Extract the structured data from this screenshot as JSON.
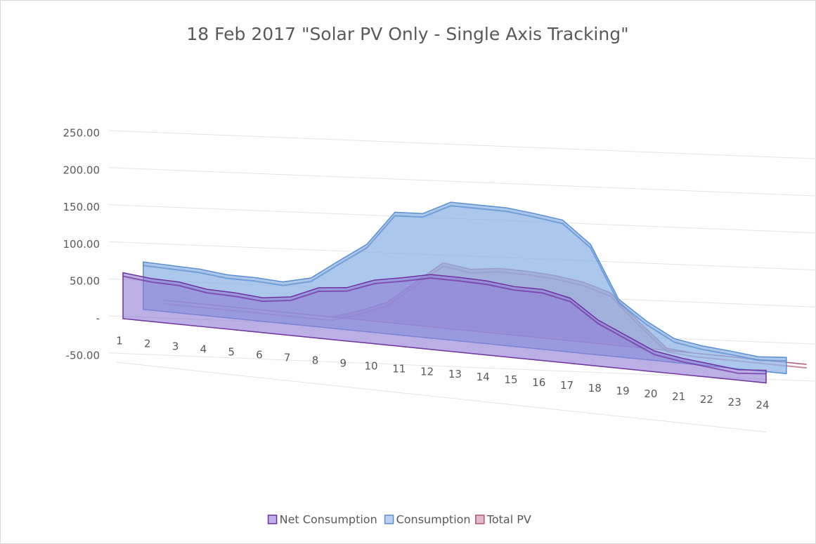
{
  "chart_data": {
    "type": "area3d",
    "title": "18 Feb 2017 \"Solar PV Only - Single Axis Tracking\"",
    "categories": [
      "1",
      "2",
      "3",
      "4",
      "5",
      "6",
      "7",
      "8",
      "9",
      "10",
      "11",
      "12",
      "13",
      "14",
      "15",
      "16",
      "17",
      "18",
      "19",
      "20",
      "21",
      "22",
      "23",
      "24"
    ],
    "series": [
      {
        "name": "Net Consumption",
        "color": "#7030a0",
        "fill": "#8e7ad6",
        "values": [
          62,
          58,
          57,
          51,
          50,
          47,
          52,
          68,
          72,
          86,
          93,
          101,
          101,
          100,
          96,
          96,
          88,
          62,
          45,
          28,
          22,
          18,
          14,
          17
        ]
      },
      {
        "name": "Consumption",
        "color": "#5b8fd0",
        "fill": "#8fb4e6",
        "values": [
          64,
          63,
          62,
          58,
          58,
          56,
          65,
          92,
          118,
          165,
          167,
          186,
          186,
          186,
          182,
          177,
          148,
          78,
          52,
          32,
          26,
          23,
          19,
          22
        ]
      },
      {
        "name": "Total PV",
        "color": "#b5537a",
        "fill": "#c98aa6",
        "values": [
          0,
          0,
          0,
          0,
          0,
          0,
          0,
          12,
          27,
          58,
          88,
          83,
          88,
          88,
          86,
          81,
          70,
          35,
          3,
          0,
          0,
          0,
          0,
          0
        ]
      }
    ],
    "ylim": [
      -50,
      250
    ],
    "yticks": [
      {
        "value": -50,
        "label": "-50.00"
      },
      {
        "value": 0,
        "label": "-"
      },
      {
        "value": 50,
        "label": "50.00"
      },
      {
        "value": 100,
        "label": "100.00"
      },
      {
        "value": 150,
        "label": "150.00"
      },
      {
        "value": 200,
        "label": "200.00"
      },
      {
        "value": 250,
        "label": "250.00"
      }
    ],
    "grid": true,
    "legend": "bottom"
  }
}
